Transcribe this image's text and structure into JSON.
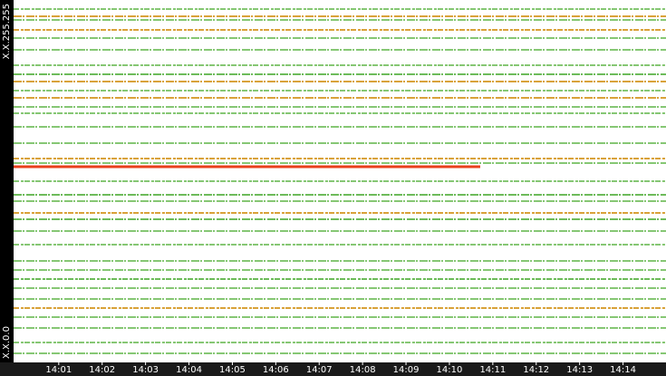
{
  "chart_data": {
    "type": "traffic-rows",
    "xlim": [
      -0.04,
      14.99
    ],
    "xticks": [
      {
        "value": 1,
        "label": "14:01"
      },
      {
        "value": 2,
        "label": "14:02"
      },
      {
        "value": 3,
        "label": "14:03"
      },
      {
        "value": 4,
        "label": "14:04"
      },
      {
        "value": 5,
        "label": "14:05"
      },
      {
        "value": 6,
        "label": "14:06"
      },
      {
        "value": 7,
        "label": "14:07"
      },
      {
        "value": 8,
        "label": "14:08"
      },
      {
        "value": 9,
        "label": "14:09"
      },
      {
        "value": 10,
        "label": "14:10"
      },
      {
        "value": 11,
        "label": "14:11"
      },
      {
        "value": 12,
        "label": "14:12"
      },
      {
        "value": 13,
        "label": "14:13"
      },
      {
        "value": 14,
        "label": "14:14"
      }
    ],
    "ylim": [
      0,
      65535
    ],
    "yticks": [
      {
        "value": 0,
        "label": "X.X.0.0"
      },
      {
        "value": 65535,
        "label": "X.X.255.255"
      }
    ],
    "rows": [
      {
        "y": 63898,
        "x": [
          -0.04,
          14.99
        ],
        "color": "#86c774"
      },
      {
        "y": 62587,
        "x": [
          -0.04,
          14.99
        ],
        "color": "#d9a23a"
      },
      {
        "y": 61932,
        "x": [
          -0.04,
          14.99
        ],
        "color": "#86c774"
      },
      {
        "y": 60129,
        "x": [
          -0.04,
          14.99
        ],
        "color": "#d9a23a"
      },
      {
        "y": 58655,
        "x": [
          -0.04,
          14.99
        ],
        "color": "#86c774"
      },
      {
        "y": 56525,
        "x": [
          -0.04,
          14.99
        ],
        "color": "#86c774"
      },
      {
        "y": 53740,
        "x": [
          -0.04,
          14.99
        ],
        "color": "#86c774"
      },
      {
        "y": 52101,
        "x": [
          -0.04,
          14.99
        ],
        "color": "#6dbb5a"
      },
      {
        "y": 50790,
        "x": [
          -0.04,
          14.99
        ],
        "color": "#d9a23a"
      },
      {
        "y": 49152,
        "x": [
          -0.04,
          14.99
        ],
        "color": "#86c774"
      },
      {
        "y": 47841,
        "x": [
          -0.04,
          14.99
        ],
        "color": "#d9a23a"
      },
      {
        "y": 46203,
        "x": [
          -0.04,
          14.99
        ],
        "color": "#86c774"
      },
      {
        "y": 45056,
        "x": [
          -0.04,
          14.99
        ],
        "color": "#86c774"
      },
      {
        "y": 42598,
        "x": [
          -0.04,
          14.99
        ],
        "color": "#86c774"
      },
      {
        "y": 39649,
        "x": [
          -0.04,
          14.99
        ],
        "color": "#86c774"
      },
      {
        "y": 36864,
        "x": [
          -0.04,
          14.99
        ],
        "color": "#d9a23a"
      },
      {
        "y": 36045,
        "x": [
          -0.04,
          14.99
        ],
        "color": "#86c774"
      },
      {
        "y": 35389,
        "x": [
          -0.04,
          10.71
        ],
        "color": "#e8401c"
      },
      {
        "y": 32768,
        "x": [
          -0.04,
          14.99
        ],
        "color": "#86c774"
      },
      {
        "y": 30310,
        "x": [
          -0.04,
          14.99
        ],
        "color": "#6dbb5a"
      },
      {
        "y": 29164,
        "x": [
          -0.04,
          14.99
        ],
        "color": "#86c774"
      },
      {
        "y": 27034,
        "x": [
          -0.04,
          14.99
        ],
        "color": "#d9a23a"
      },
      {
        "y": 25887,
        "x": [
          -0.04,
          14.99
        ],
        "color": "#6dbb5a"
      },
      {
        "y": 23757,
        "x": [
          -0.04,
          14.99
        ],
        "color": "#86c774"
      },
      {
        "y": 21299,
        "x": [
          -0.04,
          14.99
        ],
        "color": "#86c774"
      },
      {
        "y": 18350,
        "x": [
          -0.04,
          14.99
        ],
        "color": "#86c774"
      },
      {
        "y": 16712,
        "x": [
          -0.04,
          14.99
        ],
        "color": "#86c774"
      },
      {
        "y": 15073,
        "x": [
          -0.04,
          14.99
        ],
        "color": "#6dbb5a"
      },
      {
        "y": 13435,
        "x": [
          -0.04,
          14.99
        ],
        "color": "#86c774"
      },
      {
        "y": 11469,
        "x": [
          -0.04,
          14.99
        ],
        "color": "#86c774"
      },
      {
        "y": 9830,
        "x": [
          -0.04,
          14.99
        ],
        "color": "#d9a23a"
      },
      {
        "y": 8192,
        "x": [
          -0.04,
          14.99
        ],
        "color": "#86c774"
      },
      {
        "y": 6226,
        "x": [
          -0.04,
          14.99
        ],
        "color": "#86c774"
      },
      {
        "y": 3604,
        "x": [
          -0.04,
          14.99
        ],
        "color": "#86c774"
      },
      {
        "y": 1638,
        "x": [
          -0.04,
          14.99
        ],
        "color": "#86c774"
      }
    ]
  }
}
